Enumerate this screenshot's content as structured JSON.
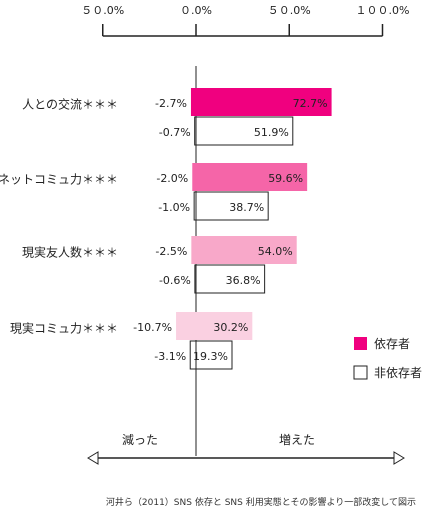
{
  "chart_data": {
    "type": "bar",
    "orientation": "horizontal",
    "xlim": [
      -50,
      100
    ],
    "ticks": [
      "５０.0%",
      "０.0%",
      "５０.0%",
      "１００.0%"
    ],
    "tick_values": [
      -50,
      0,
      50,
      100
    ],
    "categories": [
      "人との交流＊＊＊",
      "ネットコミュ力＊＊＊",
      "現実友人数＊＊＊",
      "現実コミュ力＊＊＊"
    ],
    "series": [
      {
        "name": "依存者",
        "color": "#f0007f",
        "decrease": [
          -2.7,
          -2.0,
          -2.5,
          -10.7
        ],
        "increase": [
          72.7,
          59.6,
          54.0,
          30.2
        ],
        "decrease_labels": [
          "-2.7%",
          "-2.0%",
          "-2.5%",
          "-10.7%"
        ],
        "increase_labels": [
          "72.7%",
          "59.6%",
          "54.0%",
          "30.2%"
        ],
        "category_colors": [
          "#f0007f",
          "#f565a8",
          "#f8a8c9",
          "#fad0e1"
        ]
      },
      {
        "name": "非依存者",
        "color": "#ffffff",
        "decrease": [
          -0.7,
          -1.0,
          -0.6,
          -3.1
        ],
        "increase": [
          51.9,
          38.7,
          36.8,
          19.3
        ],
        "decrease_labels": [
          "-0.7%",
          "-1.0%",
          "-0.6%",
          "-3.1%"
        ],
        "increase_labels": [
          "51.9%",
          "38.7%",
          "36.8%",
          "19.3%"
        ]
      }
    ],
    "legend_position": "right",
    "arrow_left_label": "減った",
    "arrow_right_label": "増えた",
    "source": "河井ら（2011）SNS 依存と SNS 利用実態とその影響より一部改変して図示"
  }
}
